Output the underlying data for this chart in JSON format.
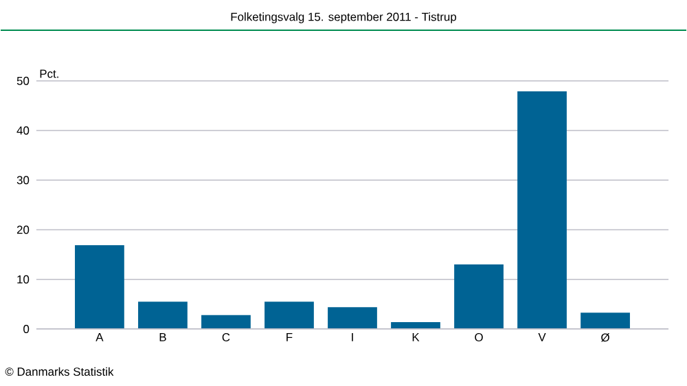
{
  "chart_data": {
    "type": "bar",
    "title": "Folketingsvalg 15. september 2011 - Tistrup",
    "ylabel": "Pct.",
    "annotations": [
      "© Danmarks Statistik"
    ],
    "categories": [
      "A",
      "B",
      "C",
      "F",
      "I",
      "K",
      "O",
      "V",
      "Ø"
    ],
    "values": [
      16.9,
      5.5,
      2.8,
      5.5,
      4.4,
      1.4,
      13.0,
      47.9,
      3.3
    ],
    "color": "#006394",
    "ylim": [
      0,
      50
    ],
    "yticks": [
      0,
      10,
      20,
      30,
      40,
      50
    ],
    "grid": "y"
  }
}
